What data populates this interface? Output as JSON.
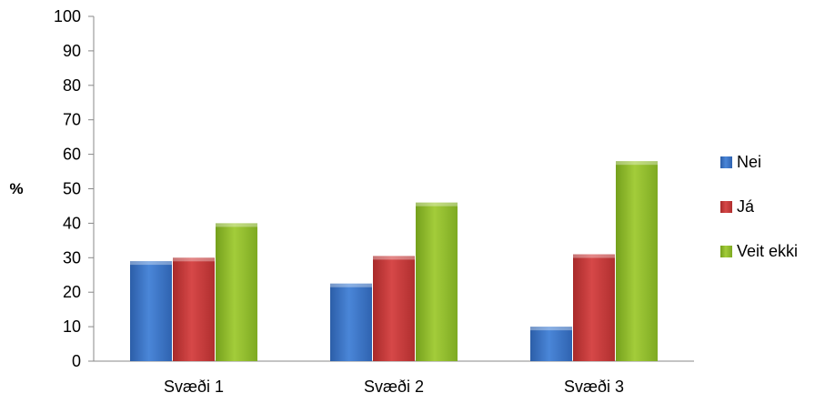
{
  "chart_data": {
    "type": "bar",
    "title": "",
    "xlabel": "",
    "ylabel": "%",
    "ylim": [
      0,
      100
    ],
    "ytick_step": 10,
    "yticks": [
      "0",
      "10",
      "20",
      "30",
      "40",
      "50",
      "60",
      "70",
      "80",
      "90",
      "100"
    ],
    "categories": [
      "Svæði 1",
      "Svæði 2",
      "Svæði 3"
    ],
    "series": [
      {
        "name": "Nei",
        "values": [
          29,
          22.5,
          10
        ],
        "color": "#3b73c8"
      },
      {
        "name": "Já",
        "values": [
          30,
          30.5,
          31
        ],
        "color": "#c43a3a"
      },
      {
        "name": "Veit ekki",
        "values": [
          40,
          46,
          58
        ],
        "color": "#8fba2c"
      }
    ],
    "grid": false,
    "legend_position": "right"
  }
}
